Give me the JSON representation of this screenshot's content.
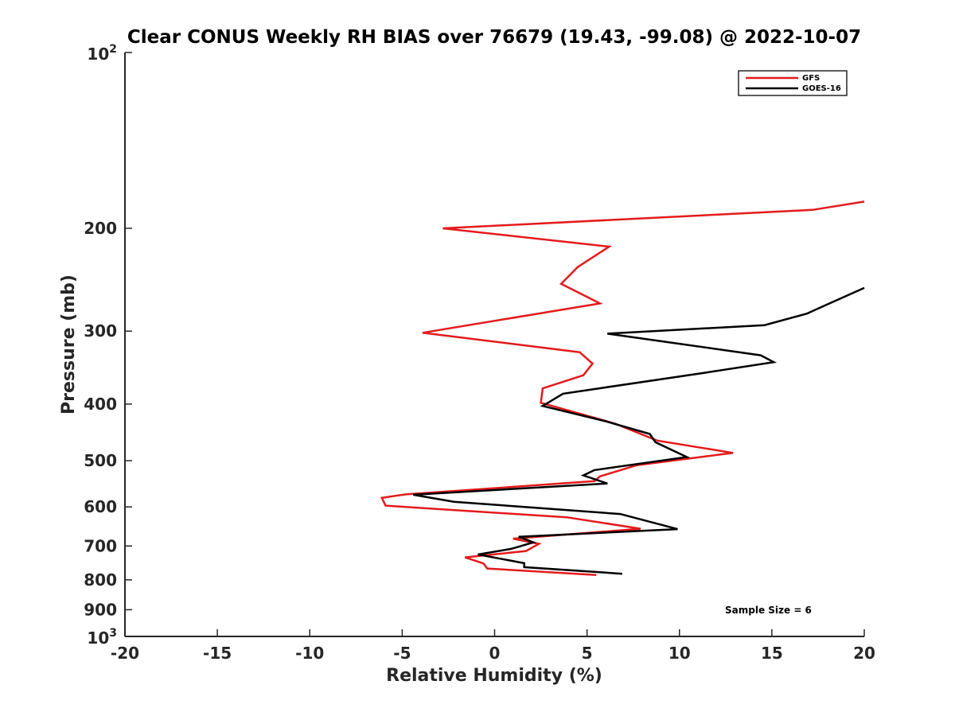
{
  "chart_data": {
    "type": "line",
    "title": "Clear CONUS Weekly RH BIAS over 76679 (19.43, -99.08) @ 2022-10-07",
    "xlabel": "Relative Humidity (%)",
    "ylabel": "Pressure (mb)",
    "xlim": [
      -20,
      20
    ],
    "ylim": [
      100,
      1000
    ],
    "y_scale": "log",
    "y_reversed": true,
    "x_ticks": [
      "-20",
      "-15",
      "-10",
      "-5",
      "0",
      "5",
      "10",
      "15",
      "20"
    ],
    "y_ticks": [
      {
        "value": 200,
        "label": "200"
      },
      {
        "value": 300,
        "label": "300"
      },
      {
        "value": 400,
        "label": "400"
      },
      {
        "value": 500,
        "label": "500"
      },
      {
        "value": 600,
        "label": "600"
      },
      {
        "value": 700,
        "label": "700"
      },
      {
        "value": 800,
        "label": "800"
      },
      {
        "value": 900,
        "label": "900"
      }
    ],
    "y_power_ticks": [
      {
        "value": 100,
        "base": "10",
        "exp": "2"
      },
      {
        "value": 1000,
        "base": "10",
        "exp": "3"
      }
    ],
    "legend_position": "top-right",
    "grid": false,
    "series": [
      {
        "name": "GFS",
        "color": "#e41a1c",
        "points": [
          [
            20.0,
            180
          ],
          [
            17.2,
            186
          ],
          [
            -2.8,
            200
          ],
          [
            6.2,
            215
          ],
          [
            4.5,
            233
          ],
          [
            3.6,
            249
          ],
          [
            5.7,
            269
          ],
          [
            -3.9,
            302
          ],
          [
            4.6,
            326
          ],
          [
            5.3,
            341
          ],
          [
            4.8,
            357
          ],
          [
            2.6,
            376
          ],
          [
            2.5,
            398
          ],
          [
            6.5,
            432
          ],
          [
            8.8,
            462
          ],
          [
            12.9,
            485
          ],
          [
            7.7,
            509
          ],
          [
            5.7,
            532
          ],
          [
            5.4,
            542
          ],
          [
            -4.8,
            571
          ],
          [
            -6.1,
            579
          ],
          [
            -5.9,
            597
          ],
          [
            3.9,
            625
          ],
          [
            7.9,
            654
          ],
          [
            1.0,
            680
          ],
          [
            2.4,
            694
          ],
          [
            1.7,
            714
          ],
          [
            -1.6,
            732
          ],
          [
            -0.6,
            750
          ],
          [
            -0.4,
            765
          ],
          [
            5.5,
            785
          ]
        ]
      },
      {
        "name": "GOES-16",
        "color": "#000000",
        "points": [
          [
            20.0,
            253
          ],
          [
            18.0,
            270
          ],
          [
            16.9,
            280
          ],
          [
            14.6,
            293
          ],
          [
            6.1,
            303
          ],
          [
            14.4,
            330
          ],
          [
            15.1,
            339
          ],
          [
            11.5,
            353
          ],
          [
            3.7,
            384
          ],
          [
            2.6,
            403
          ],
          [
            6.0,
            428
          ],
          [
            8.4,
            450
          ],
          [
            8.7,
            465
          ],
          [
            10.4,
            493
          ],
          [
            5.4,
            519
          ],
          [
            4.8,
            530
          ],
          [
            6.1,
            547
          ],
          [
            -4.4,
            572
          ],
          [
            -2.2,
            588
          ],
          [
            6.8,
            617
          ],
          [
            9.9,
            655
          ],
          [
            1.3,
            675
          ],
          [
            2.1,
            690
          ],
          [
            0.9,
            708
          ],
          [
            -0.9,
            724
          ],
          [
            1.6,
            749
          ],
          [
            1.6,
            761
          ],
          [
            6.9,
            781
          ]
        ]
      }
    ],
    "annotations": [
      "Sample Size = 6"
    ]
  }
}
